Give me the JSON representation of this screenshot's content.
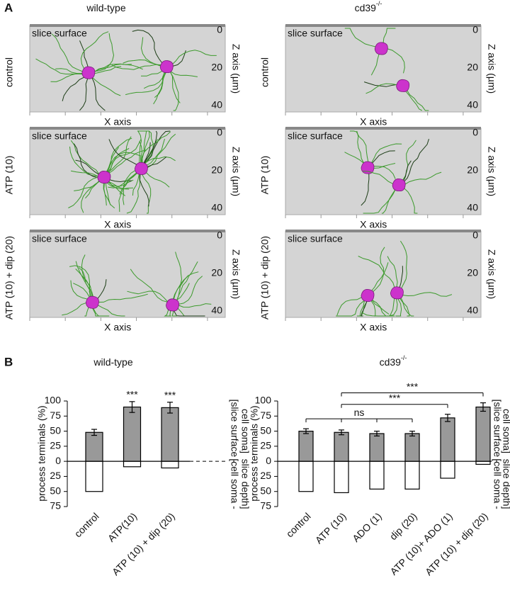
{
  "panel_labels": [
    "A",
    "B"
  ],
  "panel_a": {
    "columns": [
      {
        "name": "wild-type"
      },
      {
        "name": "cd39",
        "superscript": "-/-"
      }
    ],
    "rows": [
      "control",
      "ATP (10)",
      "ATP (10) + dip (20)"
    ],
    "surface_label": "slice surface",
    "x_label": "X axis",
    "z_label": "Z axis (µm)",
    "zlim": [
      0,
      40
    ],
    "zticks": [
      0,
      20,
      40
    ]
  },
  "chart_data": [
    {
      "type": "bar",
      "title": "wild-type",
      "y_label": "process terminals (%)",
      "upper_label": [
        "[slice surface -",
        "cell soma]"
      ],
      "lower_label": [
        "[cell soma -",
        "slice depth]"
      ],
      "categories": [
        "control",
        "ATP(10)",
        "ATP (10) + dip (20)"
      ],
      "series": [
        {
          "color": "#999999",
          "values": [
            48,
            90,
            89
          ],
          "errors": [
            5,
            9,
            9
          ]
        },
        {
          "color": "#ffffff",
          "values": [
            -50,
            -9,
            -11
          ]
        }
      ],
      "significance": [
        {
          "label": "***",
          "from": "ATP(10)",
          "to": "ATP(10)"
        },
        {
          "label": "***",
          "from": "ATP (10) + dip (20)",
          "to": "ATP (10) + dip (20)"
        }
      ],
      "ylim": [
        -75,
        100
      ],
      "yticks": [
        100,
        75,
        50,
        25,
        0,
        {
          "value": -25,
          "label": "25"
        },
        {
          "value": -50,
          "label": "50"
        },
        {
          "value": -75,
          "label": "75"
        }
      ]
    },
    {
      "type": "bar",
      "title": "cd39",
      "title_superscript": "-/-",
      "y_label": "process terminals (%)",
      "upper_label": [
        "[slice surface -",
        "cell soma]"
      ],
      "lower_label": [
        "[cell soma -",
        "slice depth]"
      ],
      "categories": [
        "control",
        "ATP (10)",
        "ADO (1)",
        "dip (20)",
        "ATP (10)+ ADO (1)",
        "ATP (10) + dip (20)"
      ],
      "series": [
        {
          "color": "#999999",
          "values": [
            50,
            48,
            46,
            46,
            72,
            90
          ],
          "errors": [
            4,
            4,
            4,
            4,
            6,
            7
          ]
        },
        {
          "color": "#ffffff",
          "values": [
            -50,
            -52,
            -46,
            -46,
            -28,
            -5
          ]
        }
      ],
      "significance": [
        {
          "label": "ns",
          "from": "control",
          "to": "dip (20)"
        },
        {
          "label": "***",
          "from": "ATP (10)",
          "to": "ATP (10)+ ADO (1)"
        },
        {
          "label": "***",
          "from": "ATP (10)",
          "to": "ATP (10) + dip (20)"
        }
      ],
      "ylim": [
        -75,
        100
      ],
      "yticks": [
        100,
        75,
        50,
        25,
        0,
        {
          "value": -25,
          "label": "25"
        },
        {
          "value": -50,
          "label": "50"
        },
        {
          "value": -75,
          "label": "75"
        }
      ]
    }
  ]
}
